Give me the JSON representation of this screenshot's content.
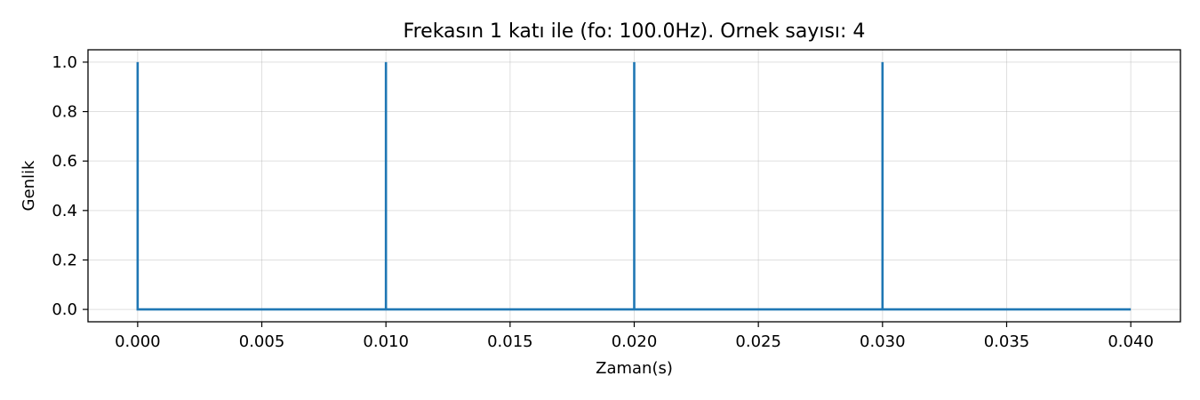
{
  "chart_data": {
    "type": "line",
    "title": "Frekasın 1 katı ile (fo: 100.0Hz). Ornek sayısı: 4",
    "xlabel": "Zaman(s)",
    "ylabel": "Genlik",
    "xlim": [
      -0.002,
      0.042
    ],
    "ylim": [
      -0.05,
      1.05
    ],
    "x_ticks": [
      0.0,
      0.005,
      0.01,
      0.015,
      0.02,
      0.025,
      0.03,
      0.035,
      0.04
    ],
    "x_tick_labels": [
      "0.000",
      "0.005",
      "0.010",
      "0.015",
      "0.020",
      "0.025",
      "0.030",
      "0.035",
      "0.040"
    ],
    "y_ticks": [
      0.0,
      0.2,
      0.4,
      0.6,
      0.8,
      1.0
    ],
    "y_tick_labels": [
      "0.0",
      "0.2",
      "0.4",
      "0.6",
      "0.8",
      "1.0"
    ],
    "grid": true,
    "series": [
      {
        "color": "#1f77b4",
        "x": [
          0.0,
          0.0,
          0.0,
          0.01,
          0.01,
          0.01,
          0.02,
          0.02,
          0.02,
          0.03,
          0.03,
          0.03,
          0.04
        ],
        "y": [
          1.0,
          0.0,
          0.0,
          0.0,
          1.0,
          0.0,
          0.0,
          1.0,
          0.0,
          0.0,
          1.0,
          0.0,
          0.0
        ]
      }
    ]
  }
}
